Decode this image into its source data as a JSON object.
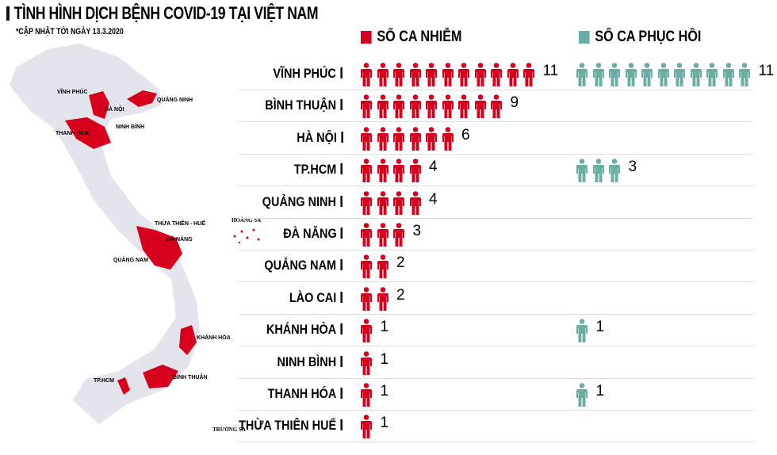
{
  "title": "TÌNH HÌNH DỊCH BỆNH COVID-19 TẠI VIỆT NAM",
  "subtitle": "*CẬP NHẬT TỚI NGÀY 13.3.2020",
  "colors": {
    "infected": "#d6001c",
    "recovered": "#6aaea3",
    "map": "#e4e4ec"
  },
  "map_labels": {
    "vinh_phuc": "VĨNH PHÚC",
    "ha_noi": "HÀ NỘI",
    "quang_ninh": "QUẢNG NINH",
    "thanh_hoa": "THANH HÓA",
    "ninh_binh": "NINH BÌNH",
    "hue": "THỪA THIÊN - HUẾ",
    "da_nang": "ĐÀ NẴNG",
    "quang_nam": "QUẢNG NAM",
    "khanh_hoa": "KHÁNH HÒA",
    "binh_thuan": "BÌNH THUẬN",
    "tphcm": "TP.HCM",
    "hoang_sa": "HOÀNG SA",
    "truong_sa": "TRƯỜNG SA"
  },
  "chart_data": {
    "type": "pictogram-bar",
    "title": "TÌNH HÌNH DỊCH BỆNH COVID-19 TẠI VIỆT NAM",
    "series_names": [
      "SỐ CA NHIỄM",
      "SỐ CA PHỤC HỒI"
    ],
    "categories": [
      "VĨNH PHÚC",
      "BÌNH THUẬN",
      "HÀ NỘI",
      "TP.HCM",
      "QUẢNG NINH",
      "ĐÀ NẴNG",
      "QUẢNG NAM",
      "LÀO CAI",
      "KHÁNH HÒA",
      "NINH BÌNH",
      "THANH HÓA",
      "THỪA THIÊN HUẾ"
    ],
    "infected": [
      11,
      9,
      6,
      4,
      4,
      3,
      2,
      2,
      1,
      1,
      1,
      1
    ],
    "recovered": [
      11,
      0,
      0,
      3,
      0,
      0,
      0,
      0,
      1,
      0,
      1,
      0
    ]
  }
}
